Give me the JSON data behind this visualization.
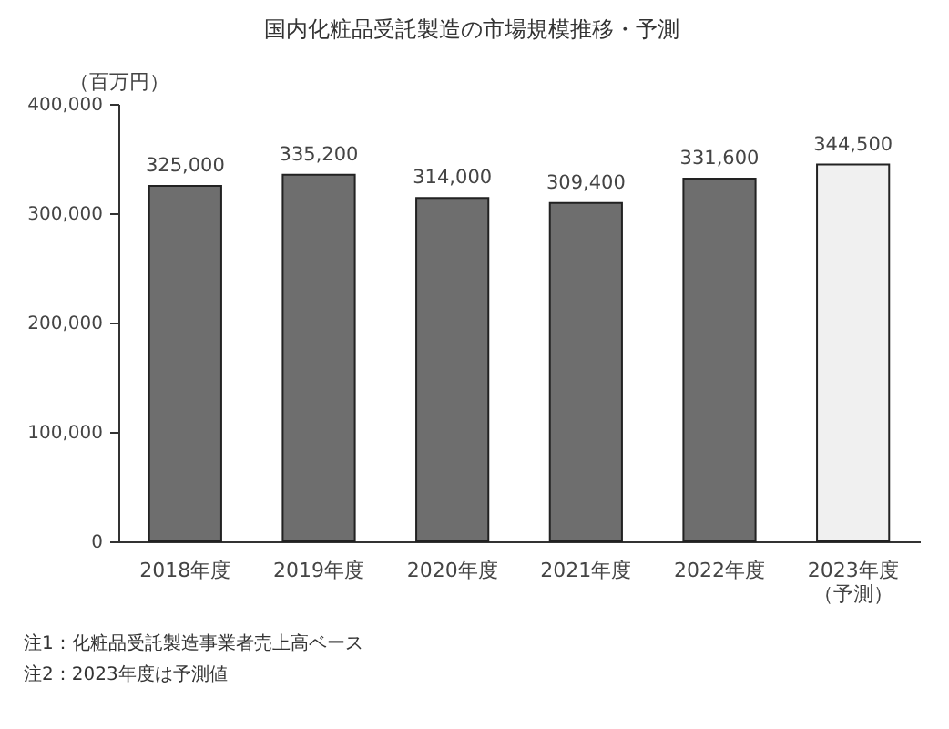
{
  "chart_data": {
    "type": "bar",
    "title": "国内化粧品受託製造の市場規模推移・予測",
    "ylabel": "（百万円）",
    "categories": [
      "2018年度",
      "2019年度",
      "2020年度",
      "2021年度",
      "2022年度",
      "2023年度（予測）"
    ],
    "values": [
      325000,
      335200,
      314000,
      309400,
      331600,
      344500
    ],
    "colors": [
      "#6e6e6e",
      "#6e6e6e",
      "#6e6e6e",
      "#6e6e6e",
      "#6e6e6e",
      "#f0f0f0"
    ],
    "value_labels": [
      "325,000",
      "335,200",
      "314,000",
      "309,400",
      "331,600",
      "344,500"
    ],
    "ylim": [
      0,
      400000
    ],
    "yticks": [
      0,
      {
        "value": 100000,
        "label": "100,000"
      },
      {
        "value": 200000,
        "label": "200,000"
      },
      {
        "value": 300000,
        "label": "300,000"
      },
      {
        "value": 400000,
        "label": "400,000"
      }
    ],
    "annotations": [
      "注1：化粧品受託製造事業者売上高ベース",
      "注2：2023年度は予測値"
    ]
  }
}
